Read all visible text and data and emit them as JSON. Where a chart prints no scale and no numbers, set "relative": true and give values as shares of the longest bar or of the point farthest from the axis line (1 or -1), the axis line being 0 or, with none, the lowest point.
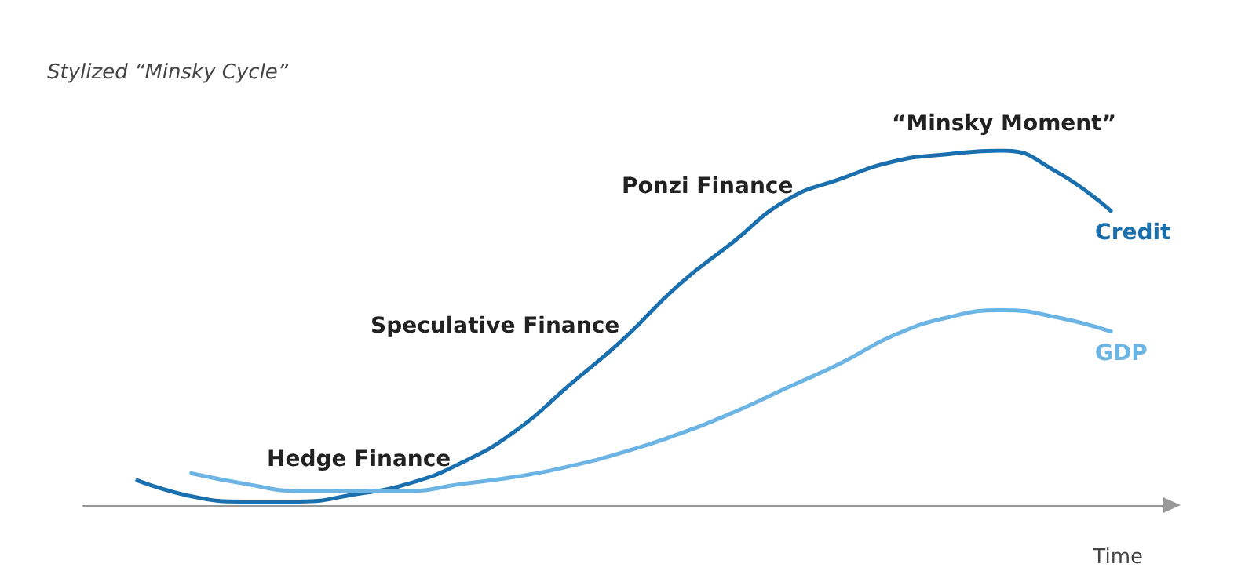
{
  "chart_data": {
    "type": "line",
    "title": "Stylized “Minsky Cycle”",
    "xlabel": "Time",
    "relative": true,
    "grid": false,
    "legend": false,
    "marker": "none",
    "line_style": "solid",
    "categories": [
      null,
      null,
      null,
      null,
      null,
      null,
      null,
      null,
      null,
      null,
      null,
      null,
      null,
      null,
      null,
      null,
      null,
      null,
      null,
      null,
      null
    ],
    "series": [
      {
        "name": "Credit",
        "color": "#1a6faf",
        "values": [
          null,
          0.07,
          0.025,
          0.01,
          0.01,
          0.03,
          0.06,
          0.12,
          0.21,
          0.34,
          0.47,
          0.62,
          0.74,
          0.86,
          0.92,
          0.97,
          0.99,
          1.0,
          0.94,
          0.83,
          null
        ]
      },
      {
        "name": "GDP",
        "color": "#6cb4e4",
        "values": [
          null,
          null,
          0.09,
          0.06,
          0.04,
          0.04,
          0.04,
          0.06,
          0.08,
          0.11,
          0.15,
          0.2,
          0.26,
          0.33,
          0.4,
          0.48,
          0.53,
          0.55,
          0.53,
          0.49,
          null
        ]
      }
    ],
    "annotations": [
      "Hedge Finance",
      "Speculative Finance",
      "Ponzi Finance",
      "“Minsky Moment”"
    ]
  }
}
